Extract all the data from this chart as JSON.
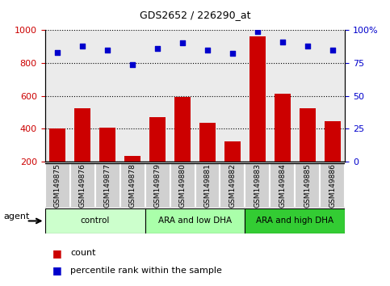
{
  "title": "GDS2652 / 226290_at",
  "samples": [
    "GSM149875",
    "GSM149876",
    "GSM149877",
    "GSM149878",
    "GSM149879",
    "GSM149880",
    "GSM149881",
    "GSM149882",
    "GSM149883",
    "GSM149884",
    "GSM149885",
    "GSM149886"
  ],
  "counts": [
    400,
    522,
    405,
    235,
    470,
    595,
    435,
    325,
    960,
    615,
    525,
    445
  ],
  "percentiles": [
    83,
    88,
    85,
    74,
    86,
    90,
    85,
    82,
    99,
    91,
    88,
    85
  ],
  "bar_color": "#cc0000",
  "dot_color": "#0000cc",
  "ylim_left": [
    200,
    1000
  ],
  "ylim_right": [
    0,
    100
  ],
  "yticks_left": [
    200,
    400,
    600,
    800,
    1000
  ],
  "yticks_right": [
    0,
    25,
    50,
    75,
    100
  ],
  "groups": [
    {
      "label": "control",
      "start": 0,
      "end": 4,
      "color": "#ccffcc"
    },
    {
      "label": "ARA and low DHA",
      "start": 4,
      "end": 8,
      "color": "#aaffaa"
    },
    {
      "label": "ARA and high DHA",
      "start": 8,
      "end": 12,
      "color": "#33cc33"
    }
  ],
  "agent_label": "agent",
  "legend_count_label": "count",
  "legend_pct_label": "percentile rank within the sample",
  "grid_color": "#000000",
  "tick_label_color_left": "#cc0000",
  "tick_label_color_right": "#0000cc",
  "bg_plot": "#ebebeb",
  "xtick_bg": "#d0d0d0",
  "xtick_border": "#ffffff"
}
